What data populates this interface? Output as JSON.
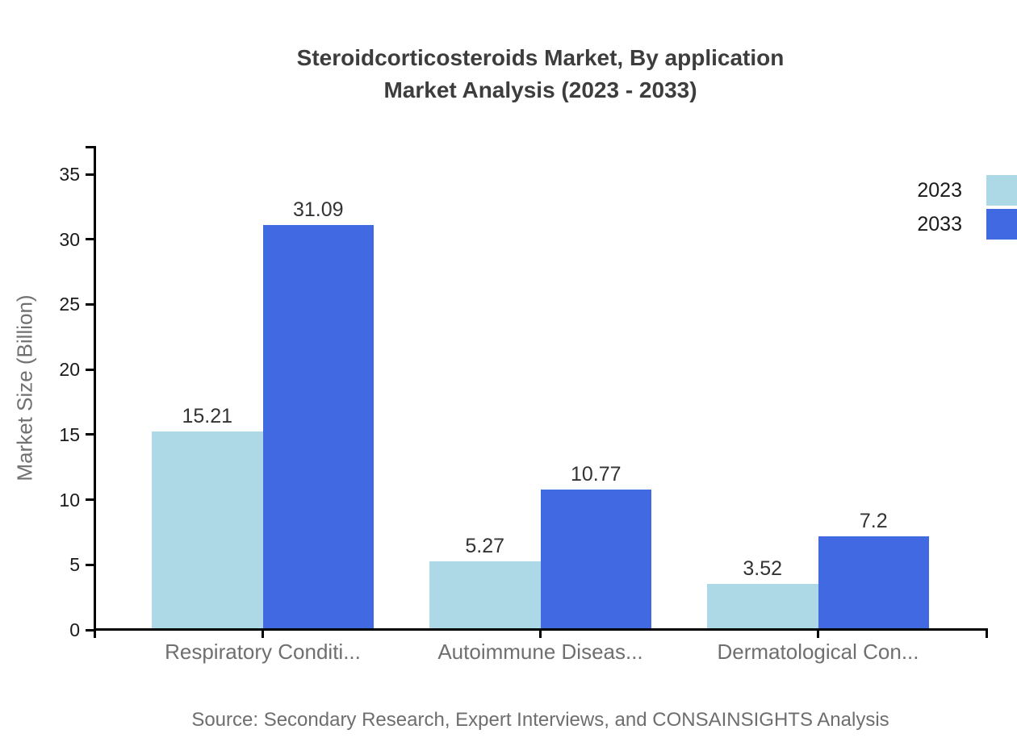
{
  "chart_data": {
    "type": "bar",
    "title": "Steroidcorticosteroids Market, By application Market Analysis (2023 - 2033)",
    "title_lines": [
      "Steroidcorticosteroids Market, By application",
      "Market Analysis (2023 - 2033)"
    ],
    "categories": [
      "Respiratory Conditi...",
      "Autoimmune Diseas...",
      "Dermatological Con..."
    ],
    "series": [
      {
        "name": "2023",
        "color": "#ADD8E6",
        "values": [
          15.21,
          5.27,
          3.52
        ]
      },
      {
        "name": "2033",
        "color": "#4169E1",
        "values": [
          31.09,
          10.77,
          7.2
        ]
      }
    ],
    "xlabel": "",
    "ylabel": "Market Size (Billion)",
    "yticks": [
      0,
      5,
      10,
      15,
      20,
      25,
      30,
      35
    ],
    "ylim": [
      0,
      37
    ],
    "grid": false,
    "legend_position": "top-right",
    "value_labels": true,
    "source": "Source: Secondary Research, Expert Interviews, and CONSAINSIGHTS Analysis",
    "colors": {
      "axis": "#000000",
      "title_text": "#3d3d3d",
      "tick_text": "#1a1a1a",
      "category_text": "#6f6f6f",
      "value_text": "#333333",
      "source_text": "#6e6e6e"
    }
  }
}
